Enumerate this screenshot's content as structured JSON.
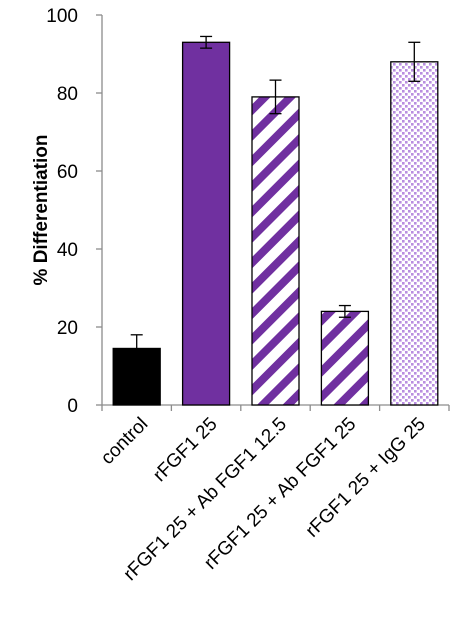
{
  "chart_data": {
    "type": "bar",
    "title": "",
    "xlabel": "",
    "ylabel": "% Differentiation",
    "ylim": [
      0,
      100
    ],
    "yticks": [
      0,
      20,
      40,
      60,
      80,
      100
    ],
    "grid": false,
    "legend": "none",
    "categories": [
      "control",
      "rFGF1 25",
      "rFGF1 25 + Ab FGF1 12.5",
      "rFGF1 25 + Ab FGF1 25",
      "rFGF1 25 + IgG 25"
    ],
    "values": [
      14.5,
      93,
      79,
      24,
      88
    ],
    "error": [
      3.5,
      1.5,
      4.3,
      1.5,
      5
    ],
    "fills": [
      "solid",
      "solid",
      "diagonal-stripes",
      "diagonal-stripes",
      "dots"
    ],
    "colors": {
      "black": "#000000",
      "purple": "#7030A0",
      "dot_purple": "#B98EE0"
    }
  }
}
